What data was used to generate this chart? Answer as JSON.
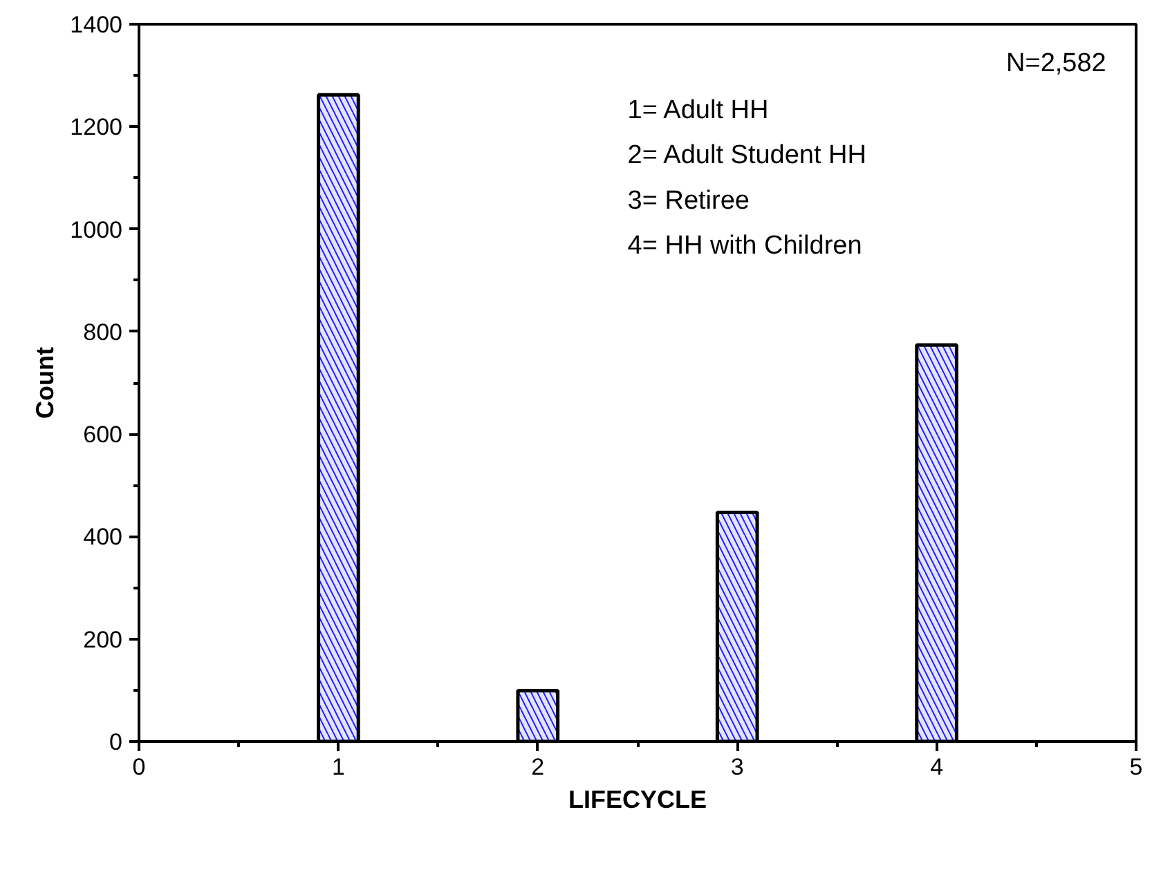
{
  "chart_data": {
    "type": "bar",
    "xlabel": "LIFECYCLE",
    "ylabel": "Count",
    "x": [
      1,
      2,
      3,
      4
    ],
    "values": [
      1262,
      99,
      447,
      774
    ],
    "color": "#1f1fff",
    "xlim": [
      0,
      5
    ],
    "xticks": [
      0,
      1,
      2,
      3,
      4,
      5
    ],
    "ylim": [
      0,
      1400
    ],
    "yticks": [
      0,
      200,
      400,
      600,
      800,
      1000,
      1200,
      1400
    ],
    "grid": false,
    "annotations": [
      "N=2,582",
      "1= Adult HH",
      "2= Adult Student HH",
      "3= Retiree",
      "4= HH with Children"
    ]
  }
}
